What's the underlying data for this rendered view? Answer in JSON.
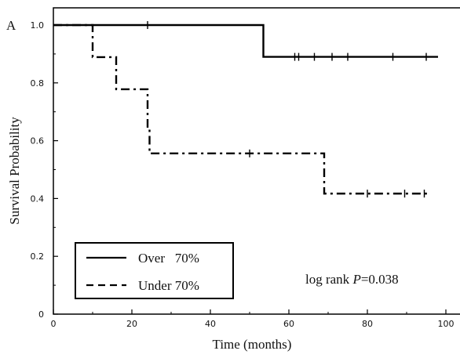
{
  "chart_data": {
    "type": "line",
    "panel_label": "A",
    "xlabel": "Time (months)",
    "ylabel": "Survival Probability",
    "xlim": [
      0,
      100
    ],
    "ylim": [
      0,
      1.0
    ],
    "xticks": [
      0,
      20,
      40,
      60,
      80,
      100
    ],
    "xtick_labels": [
      "0",
      "20",
      "40",
      "60",
      "80",
      "100"
    ],
    "yticks": [
      0,
      0.2,
      0.4,
      0.6,
      0.8,
      1.0
    ],
    "ytick_labels": [
      "0",
      "0.2",
      "0.4",
      "0.6",
      "0.8",
      "1.0"
    ],
    "grid": false,
    "legend_position": "bottom-left",
    "annotation": {
      "prefix": "log rank ",
      "p": "P",
      "value": "=0.038"
    },
    "series": [
      {
        "name": "Over   70%",
        "style": "solid",
        "steps": [
          [
            0,
            1.0
          ],
          [
            53.5,
            1.0
          ],
          [
            53.5,
            0.89
          ],
          [
            98,
            0.89
          ]
        ],
        "censored": [
          [
            24,
            1.0
          ],
          [
            61.5,
            0.89
          ],
          [
            62.5,
            0.89
          ],
          [
            66.5,
            0.89
          ],
          [
            71,
            0.89
          ],
          [
            75,
            0.89
          ],
          [
            86.5,
            0.89
          ],
          [
            95,
            0.89
          ]
        ]
      },
      {
        "name": "Under 70%",
        "style": "dashdot",
        "steps": [
          [
            0,
            1.0
          ],
          [
            10,
            1.0
          ],
          [
            10,
            0.889
          ],
          [
            16,
            0.889
          ],
          [
            16,
            0.778
          ],
          [
            24,
            0.778
          ],
          [
            24,
            0.643
          ],
          [
            24.5,
            0.643
          ],
          [
            24.5,
            0.556
          ],
          [
            69,
            0.556
          ],
          [
            69,
            0.417
          ],
          [
            96,
            0.417
          ]
        ],
        "censored": [
          [
            50,
            0.556
          ],
          [
            80,
            0.417
          ],
          [
            89.5,
            0.417
          ],
          [
            94.5,
            0.417
          ]
        ]
      }
    ]
  }
}
